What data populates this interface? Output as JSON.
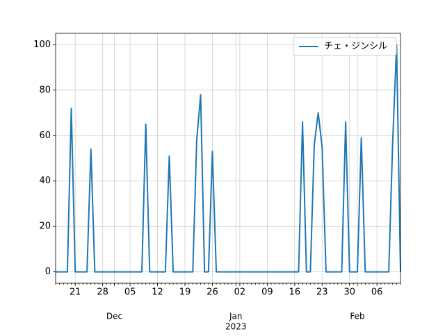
{
  "chart_data": {
    "type": "line",
    "x": [
      "2022-11-16",
      "2022-11-17",
      "2022-11-18",
      "2022-11-19",
      "2022-11-20",
      "2022-11-21",
      "2022-11-22",
      "2022-11-23",
      "2022-11-24",
      "2022-11-25",
      "2022-11-26",
      "2022-11-27",
      "2022-11-28",
      "2022-11-29",
      "2022-11-30",
      "2022-12-01",
      "2022-12-02",
      "2022-12-03",
      "2022-12-04",
      "2022-12-05",
      "2022-12-06",
      "2022-12-07",
      "2022-12-08",
      "2022-12-09",
      "2022-12-10",
      "2022-12-11",
      "2022-12-12",
      "2022-12-13",
      "2022-12-14",
      "2022-12-15",
      "2022-12-16",
      "2022-12-17",
      "2022-12-18",
      "2022-12-19",
      "2022-12-20",
      "2022-12-21",
      "2022-12-22",
      "2022-12-23",
      "2022-12-24",
      "2022-12-25",
      "2022-12-26",
      "2022-12-27",
      "2022-12-28",
      "2022-12-29",
      "2022-12-30",
      "2022-12-31",
      "2023-01-01",
      "2023-01-02",
      "2023-01-03",
      "2023-01-04",
      "2023-01-05",
      "2023-01-06",
      "2023-01-07",
      "2023-01-08",
      "2023-01-09",
      "2023-01-10",
      "2023-01-11",
      "2023-01-12",
      "2023-01-13",
      "2023-01-14",
      "2023-01-15",
      "2023-01-16",
      "2023-01-17",
      "2023-01-18",
      "2023-01-19",
      "2023-01-20",
      "2023-01-21",
      "2023-01-22",
      "2023-01-23",
      "2023-01-24",
      "2023-01-25",
      "2023-01-26",
      "2023-01-27",
      "2023-01-28",
      "2023-01-29",
      "2023-01-30",
      "2023-01-31",
      "2023-02-01",
      "2023-02-02",
      "2023-02-03",
      "2023-02-04",
      "2023-02-05",
      "2023-02-06",
      "2023-02-07",
      "2023-02-08",
      "2023-02-09",
      "2023-02-10",
      "2023-02-11",
      "2023-02-12"
    ],
    "series": [
      {
        "name": "チェ・ジンシル",
        "color": "#1f77b4",
        "values": [
          0,
          0,
          0,
          0,
          72,
          0,
          0,
          0,
          0,
          54,
          0,
          0,
          0,
          0,
          0,
          0,
          0,
          0,
          0,
          0,
          0,
          0,
          0,
          65,
          0,
          0,
          0,
          0,
          0,
          51,
          0,
          0,
          0,
          0,
          0,
          0,
          58,
          78,
          0,
          0,
          53,
          0,
          0,
          0,
          0,
          0,
          0,
          0,
          0,
          0,
          0,
          0,
          0,
          0,
          0,
          0,
          0,
          0,
          0,
          0,
          0,
          0,
          0,
          66,
          0,
          0,
          56,
          70,
          55,
          0,
          0,
          0,
          0,
          0,
          66,
          0,
          0,
          0,
          59,
          0,
          0,
          0,
          0,
          0,
          0,
          0,
          57,
          100,
          0
        ]
      }
    ],
    "xlim": [
      "2022-11-16",
      "2023-02-12"
    ],
    "xticks": [
      {
        "value": "2022-11-21",
        "label": "21"
      },
      {
        "value": "2022-11-28",
        "label": "28"
      },
      {
        "value": "2022-12-05",
        "label": "05"
      },
      {
        "value": "2022-12-12",
        "label": "12"
      },
      {
        "value": "2022-12-19",
        "label": "19"
      },
      {
        "value": "2022-12-26",
        "label": "26"
      },
      {
        "value": "2023-01-02",
        "label": "02"
      },
      {
        "value": "2023-01-09",
        "label": "09"
      },
      {
        "value": "2023-01-16",
        "label": "16"
      },
      {
        "value": "2023-01-23",
        "label": "23"
      },
      {
        "value": "2023-01-30",
        "label": "30"
      },
      {
        "value": "2023-02-06",
        "label": "06"
      }
    ],
    "month_ticks": [
      {
        "value": "2022-12-01",
        "label": "Dec"
      },
      {
        "value": "2023-01-01",
        "label": "Jan"
      },
      {
        "value": "2023-02-01",
        "label": "Feb"
      }
    ],
    "x_offset_label": "2023",
    "ylim": [
      -5,
      105
    ],
    "yticks": [
      0,
      20,
      40,
      60,
      80,
      100
    ],
    "grid": true,
    "legend": "upper right"
  }
}
